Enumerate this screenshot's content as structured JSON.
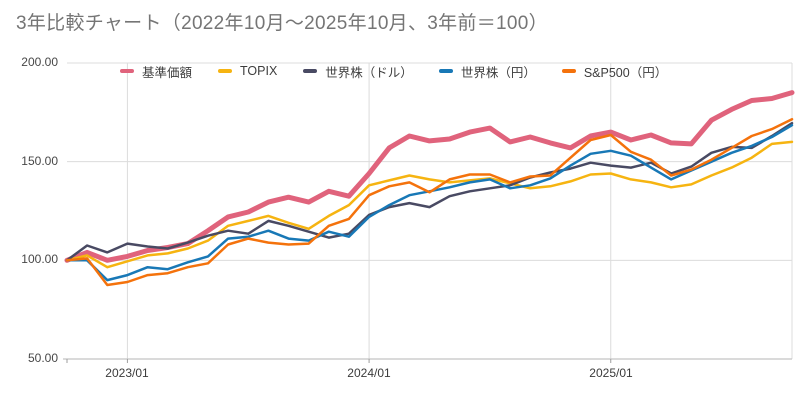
{
  "title": "3年比較チャート（2022年10月～2025年10月、3年前＝100）",
  "chart_data": {
    "type": "line",
    "title": "3年比較チャート（2022年10月～2025年10月、3年前＝100）",
    "xlabel": "",
    "ylabel": "",
    "ylim": [
      50,
      200
    ],
    "grid": true,
    "legend_position": "top",
    "y_ticks": [
      200,
      150,
      100,
      50
    ],
    "y_tick_labels": [
      "200.00",
      "150.00",
      "100.00",
      "50.00"
    ],
    "x_ticks": [
      {
        "index": 3,
        "label": "2023/01"
      },
      {
        "index": 15,
        "label": "2024/01"
      },
      {
        "index": 27,
        "label": "2025/01"
      }
    ],
    "x_labels": [
      "2022/10",
      "2022/11",
      "2022/12",
      "2023/01",
      "2023/02",
      "2023/03",
      "2023/04",
      "2023/05",
      "2023/06",
      "2023/07",
      "2023/08",
      "2023/09",
      "2023/10",
      "2023/11",
      "2023/12",
      "2024/01",
      "2024/02",
      "2024/03",
      "2024/04",
      "2024/05",
      "2024/06",
      "2024/07",
      "2024/08",
      "2024/09",
      "2024/10",
      "2024/11",
      "2024/12",
      "2025/01",
      "2025/02",
      "2025/03",
      "2025/04",
      "2025/05",
      "2025/06",
      "2025/07",
      "2025/08",
      "2025/09",
      "2025/10"
    ],
    "series": [
      {
        "key": "kijun-kagaku",
        "name": "基準価額",
        "color": "#e0637c",
        "emphasis": true,
        "values": [
          100,
          104,
          100,
          102,
          105,
          106.5,
          108.5,
          115,
          122,
          124.5,
          129.5,
          132,
          129.5,
          135,
          132.5,
          144,
          157,
          163,
          160.5,
          161.5,
          165,
          167,
          160,
          162.5,
          159.5,
          157,
          163,
          165,
          161,
          163.5,
          159.5,
          159,
          171,
          176.5,
          181,
          182,
          185
        ]
      },
      {
        "key": "topix",
        "name": "TOPIX",
        "color": "#f6b411",
        "emphasis": false,
        "values": [
          100,
          102.5,
          96.5,
          99.5,
          102.5,
          103.5,
          106,
          110,
          117.5,
          120,
          122.5,
          119,
          116,
          122.5,
          128,
          138,
          140.5,
          143,
          141,
          139.5,
          140.5,
          141.5,
          139,
          136.5,
          137.5,
          140,
          143.5,
          144,
          141,
          139.5,
          137,
          138.5,
          143,
          147,
          152,
          159,
          160
        ]
      },
      {
        "key": "world-usd",
        "name": "世界株（ドル）",
        "color": "#494a63",
        "emphasis": false,
        "values": [
          100,
          107.5,
          104,
          108.5,
          107,
          106,
          109,
          112.5,
          115,
          113.5,
          120,
          117.5,
          114.5,
          111.5,
          113.5,
          123,
          127,
          129,
          127,
          132.5,
          135,
          136.5,
          138,
          142,
          144.5,
          146.5,
          149.5,
          148,
          147,
          149.5,
          144,
          147.5,
          154.5,
          157.5,
          157,
          163,
          169.5
        ]
      },
      {
        "key": "world-jpy",
        "name": "世界株（円）",
        "color": "#1878b6",
        "emphasis": false,
        "values": [
          100,
          100,
          90,
          92.5,
          96.5,
          95.5,
          99,
          102,
          111,
          112,
          115,
          111,
          110,
          114.5,
          112,
          122,
          128,
          133,
          135,
          137,
          139.5,
          141,
          136.5,
          138,
          141.5,
          148,
          154,
          155.5,
          153,
          147,
          141,
          145.5,
          150,
          154.5,
          158,
          162.5,
          168.5
        ]
      },
      {
        "key": "sp500-jpy",
        "name": "S&P500（円）",
        "color": "#f4720c",
        "emphasis": false,
        "values": [
          100,
          101,
          87.5,
          89,
          92.5,
          93.5,
          96.5,
          98.5,
          108,
          111,
          109,
          108,
          108.5,
          117.5,
          121,
          133,
          137.5,
          139.5,
          134.5,
          141,
          143.5,
          143.5,
          139.5,
          142.5,
          143,
          152,
          161,
          163.5,
          155,
          151,
          143,
          146,
          151,
          157,
          163,
          166.5,
          171.5
        ]
      }
    ],
    "gridline_color": "#dcdcdc",
    "axis_line_color": "#c4c4c4",
    "tick_mark_color": "#9e9e9e"
  }
}
